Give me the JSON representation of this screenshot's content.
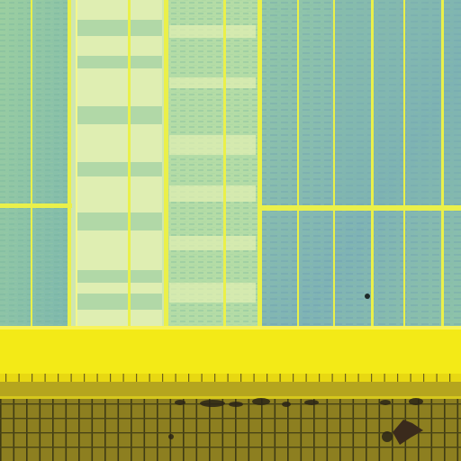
{
  "image": {
    "subject": "die-micrograph",
    "palette": {
      "cell_green": "#a9d6a3",
      "cell_teal": "#7fc2a8",
      "cell_blue_tint": "#8fb7b7",
      "pale_column": "#dfeeb2",
      "bright_yellow": "#f2f03a",
      "yellow_band": "#f3ea17",
      "olive_grid_bg": "#8a7c1e",
      "olive_grid_line": "#3d3a12",
      "debris_dark": "#2a2418"
    },
    "regions": [
      {
        "name": "left-cell-block"
      },
      {
        "name": "central-pale-column"
      },
      {
        "name": "right-cell-block"
      },
      {
        "name": "yellow-metal-bus"
      },
      {
        "name": "olive-grid-strip"
      }
    ]
  }
}
